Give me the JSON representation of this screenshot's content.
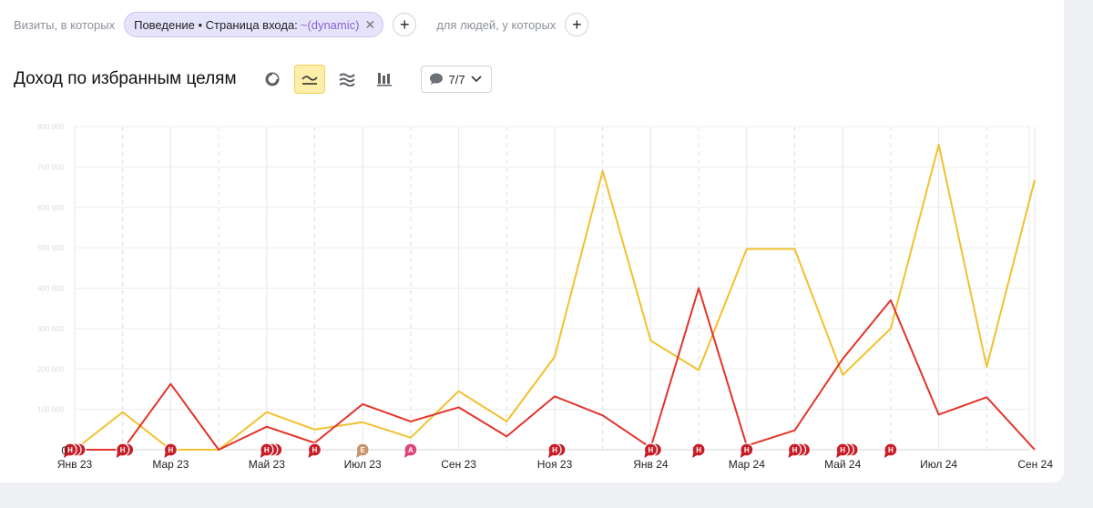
{
  "filter": {
    "prefix": "Визиты, в которых",
    "chip_label": "Поведение • Страница входа:",
    "chip_value": "~(dynamic)",
    "middle": "для людей, у которых"
  },
  "toolbar": {
    "title": "Доход по избранным целям",
    "goals_count": "7/7"
  },
  "colors": {
    "yellow_series": "#f2c12e",
    "red_series": "#e4332a",
    "accent": "#fdeeaa"
  },
  "chart_data": {
    "type": "line",
    "x": [
      "2023-01",
      "2023-02",
      "2023-03",
      "2023-04",
      "2023-05",
      "2023-06",
      "2023-07",
      "2023-08",
      "2023-09",
      "2023-10",
      "2023-11",
      "2023-12",
      "2024-01",
      "2024-02",
      "2024-03",
      "2024-04",
      "2024-05",
      "2024-06",
      "2024-07",
      "2024-08",
      "2024-09"
    ],
    "tick_labels": [
      {
        "x": "2023-01",
        "label": "Янв 23"
      },
      {
        "x": "2023-03",
        "label": "Мар 23"
      },
      {
        "x": "2023-05",
        "label": "Май 23"
      },
      {
        "x": "2023-07",
        "label": "Июл 23"
      },
      {
        "x": "2023-09",
        "label": "Сен 23"
      },
      {
        "x": "2023-11",
        "label": "Ноя 23"
      },
      {
        "x": "2024-01",
        "label": "Янв 24"
      },
      {
        "x": "2024-03",
        "label": "Мар 24"
      },
      {
        "x": "2024-05",
        "label": "Май 24"
      },
      {
        "x": "2024-07",
        "label": "Июл 24"
      },
      {
        "x": "2024-09",
        "label": "Сен 24"
      }
    ],
    "y_tick_labels": [
      "0",
      "100 000",
      "200 000",
      "300 000",
      "400 000",
      "500 000",
      "600 000",
      "700 000",
      "800 000"
    ],
    "ylim": [
      0,
      800000
    ],
    "grid": true,
    "series": [
      {
        "color": "#f2c12e",
        "values": [
          0,
          93000,
          0,
          0,
          93000,
          50000,
          68000,
          30000,
          145000,
          70000,
          230000,
          690000,
          270000,
          197000,
          497000,
          497000,
          185000,
          300000,
          755000,
          205000,
          668000
        ]
      },
      {
        "color": "#e4332a",
        "values": [
          0,
          0,
          163000,
          0,
          57000,
          17000,
          113000,
          70000,
          105000,
          33000,
          132000,
          85000,
          5000,
          400000,
          10000,
          48000,
          225000,
          370000,
          87000,
          130000,
          0
        ]
      }
    ],
    "markers": [
      {
        "x": "2023-01",
        "label": "Н",
        "count": 3,
        "color": "#c81e28"
      },
      {
        "x": "2023-02",
        "label": "Н",
        "count": 2,
        "color": "#c81e28"
      },
      {
        "x": "2023-03",
        "label": "Н",
        "count": 1,
        "color": "#c81e28"
      },
      {
        "x": "2023-05",
        "label": "Н",
        "count": 3,
        "color": "#c81e28"
      },
      {
        "x": "2023-06",
        "label": "Н",
        "count": 1,
        "color": "#c81e28"
      },
      {
        "x": "2023-07",
        "label": "E",
        "count": 1,
        "color": "#c9956e"
      },
      {
        "x": "2023-08",
        "label": "A",
        "count": 1,
        "color": "#e0457a"
      },
      {
        "x": "2023-11",
        "label": "Н",
        "count": 2,
        "color": "#c81e28"
      },
      {
        "x": "2024-01",
        "label": "Н",
        "count": 2,
        "color": "#c81e28"
      },
      {
        "x": "2024-02",
        "label": "Н",
        "count": 1,
        "color": "#c81e28"
      },
      {
        "x": "2024-03",
        "label": "Н",
        "count": 1,
        "color": "#c81e28"
      },
      {
        "x": "2024-04",
        "label": "Н",
        "count": 3,
        "color": "#c81e28"
      },
      {
        "x": "2024-05",
        "label": "Н",
        "count": 3,
        "color": "#c81e28"
      },
      {
        "x": "2024-06",
        "label": "Н",
        "count": 1,
        "color": "#c81e28"
      }
    ]
  }
}
